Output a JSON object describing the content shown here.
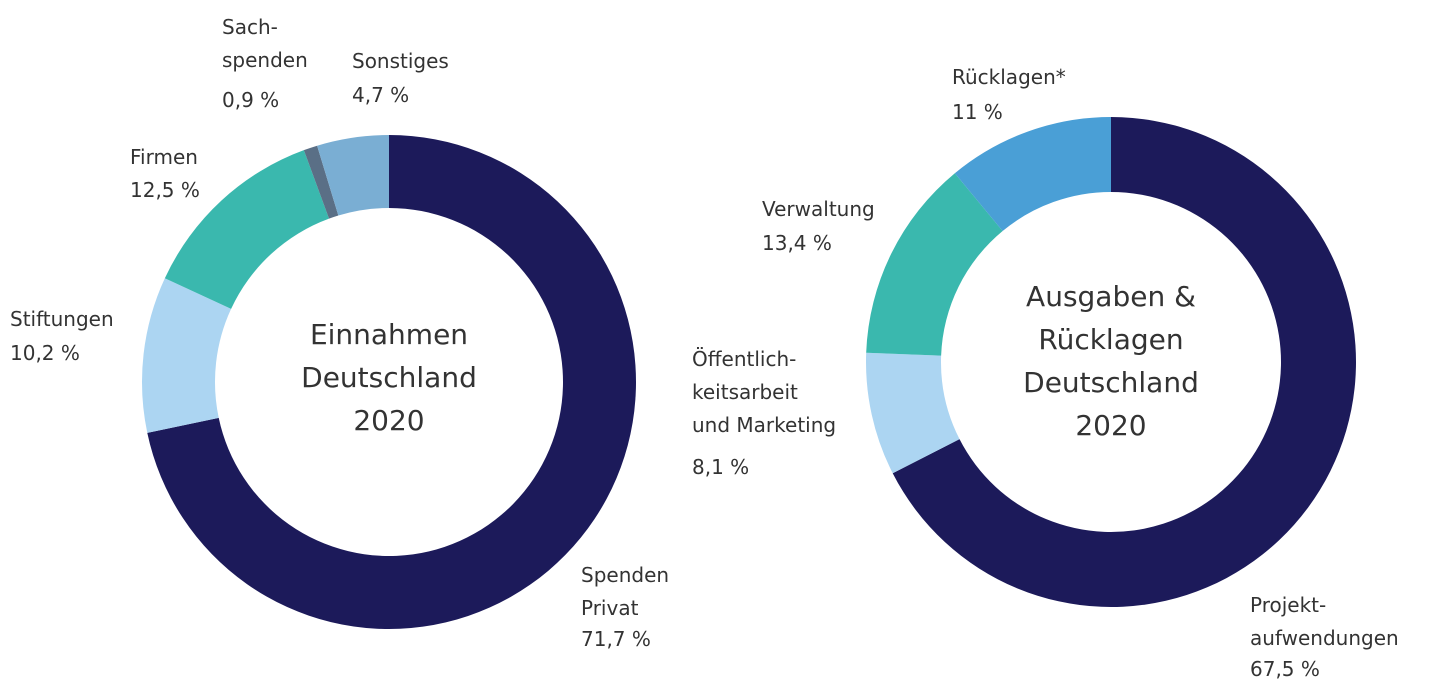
{
  "chart_data": [
    {
      "type": "donut",
      "title": "Einnahmen\nDeutschland\n2020",
      "categories": [
        "Spenden\nPrivat",
        "Stiftungen",
        "Firmen",
        "Sach-\nspenden",
        "Sonstiges"
      ],
      "values": [
        71.7,
        10.2,
        12.5,
        0.9,
        4.7
      ],
      "value_labels": [
        "71,7 %",
        "10,2 %",
        "12,5 %",
        "0,9 %",
        "4,7 %"
      ],
      "colors": [
        "#1c1a5a",
        "#acd5f2",
        "#3ab8ae",
        "#5a6f86",
        "#7aaed3"
      ]
    },
    {
      "type": "donut",
      "title": "Ausgaben &\nRücklagen\nDeutschland\n2020",
      "categories": [
        "Projekt-\naufwendungen",
        "Öffentlich-\nkeitsarbeit\nund Marketing",
        "Verwaltung",
        "Rücklagen*"
      ],
      "values": [
        67.5,
        8.1,
        13.4,
        11
      ],
      "value_labels": [
        "67,5 %",
        "8,1 %",
        "13,4 %",
        "11 %"
      ],
      "colors": [
        "#1c1a5a",
        "#acd5f2",
        "#3ab8ae",
        "#4a9fd6"
      ]
    }
  ]
}
